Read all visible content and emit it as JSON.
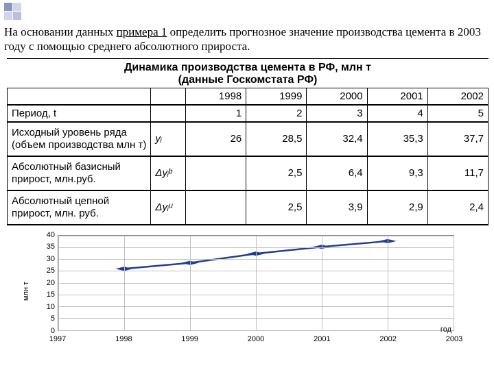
{
  "task": {
    "prefix": "На основании данных ",
    "underlined": "примера 1",
    "suffix": " определить прогнозное значение производства цемента в 2003 году с помощью среднего абсолютного прироста."
  },
  "title_l1": "Динамика производства цемента в РФ, млн т",
  "title_l2": "(данные Госкомстата РФ)",
  "years": [
    "1998",
    "1999",
    "2000",
    "2001",
    "2002"
  ],
  "rows": {
    "period": {
      "label": "Период, t",
      "sym": "",
      "vals": [
        "1",
        "2",
        "3",
        "4",
        "5"
      ]
    },
    "level": {
      "label": "Исходный уровень ряда (объем производства млн т)",
      "sym": "yᵢ",
      "vals": [
        "26",
        "28,5",
        "32,4",
        "35,3",
        "37,7"
      ]
    },
    "abs_b": {
      "label": "Абсолютный базисный прирост, млн.руб.",
      "sym": "Δyᵢᵇ",
      "vals": [
        "",
        "2,5",
        "6,4",
        "9,3",
        "11,7"
      ]
    },
    "abs_c": {
      "label": "Абсолютный цепной прирост, млн. руб.",
      "sym": "Δyᵢᵘ",
      "vals": [
        "",
        "2,5",
        "3,9",
        "2,9",
        "2,4"
      ]
    }
  },
  "chart": {
    "type": "line",
    "x_years": [
      1997,
      1998,
      1999,
      2000,
      2001,
      2002,
      2003
    ],
    "series_x": [
      1998,
      1999,
      2000,
      2001,
      2002
    ],
    "series_y": [
      26,
      28.5,
      32.4,
      35.3,
      37.7
    ],
    "ylim": [
      0,
      40
    ],
    "ytick_step": 5,
    "xlim": [
      1997,
      2003
    ],
    "line_color": "#1f3f8f",
    "grid_color": "#c0c0c0",
    "background": "#ffffff",
    "x_label": "год",
    "y_label": "млн т",
    "marker": "diamond",
    "marker_size": 8,
    "line_width": 2.5,
    "font_size": 11
  }
}
